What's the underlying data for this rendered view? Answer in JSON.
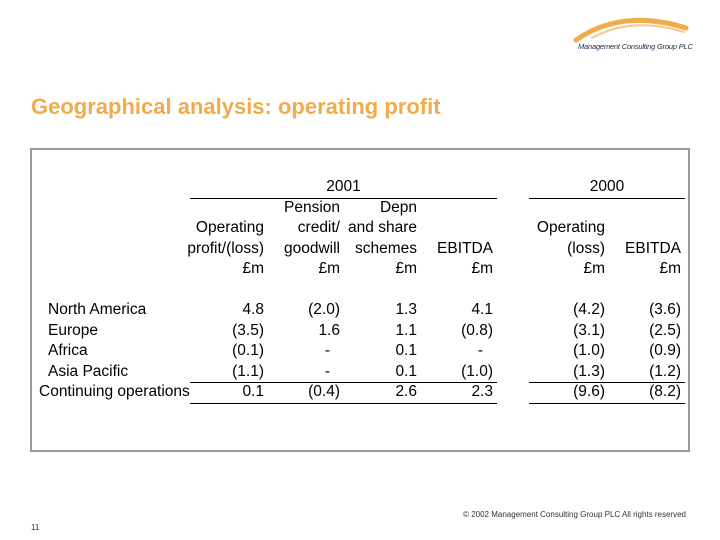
{
  "logo": {
    "text": "Management Consulting Group PLC",
    "arc_color": "#f2ab4a"
  },
  "title": "Geographical analysis: operating profit",
  "title_color": "#f2ab4a",
  "table": {
    "year_2001": "2001",
    "year_2000": "2000",
    "headers_2001": [
      [
        "Operating",
        "profit/(loss)",
        "£m"
      ],
      [
        "Pension",
        "credit/",
        "goodwill",
        "£m"
      ],
      [
        "Depn",
        "and share",
        "schemes",
        "£m"
      ],
      [
        "EBITDA",
        "£m"
      ]
    ],
    "headers_2000": [
      [
        "Operating",
        "(loss)",
        "£m"
      ],
      [
        "EBITDA",
        "£m"
      ]
    ],
    "rows": [
      {
        "label": "North America",
        "values": [
          "4.8",
          "(2.0)",
          "1.3",
          "4.1",
          "(4.2)",
          "(3.6)"
        ]
      },
      {
        "label": "Europe",
        "values": [
          "(3.5)",
          "1.6",
          "1.1",
          "(0.8)",
          "(3.1)",
          "(2.5)"
        ]
      },
      {
        "label": "Africa",
        "values": [
          "(0.1)",
          "-",
          "0.1",
          "-",
          "(1.0)",
          "(0.9)"
        ]
      },
      {
        "label": "Asia Pacific",
        "values": [
          "(1.1)",
          "-",
          "0.1",
          "(1.0)",
          "(1.3)",
          "(1.2)"
        ]
      }
    ],
    "total": {
      "label": "Continuing operations",
      "values": [
        "0.1",
        "(0.4)",
        "2.6",
        "2.3",
        "(9.6)",
        "(8.2)"
      ]
    }
  },
  "footer": {
    "copyright": "© 2002 Management Consulting Group PLC   All rights reserved",
    "page_number": "11"
  }
}
